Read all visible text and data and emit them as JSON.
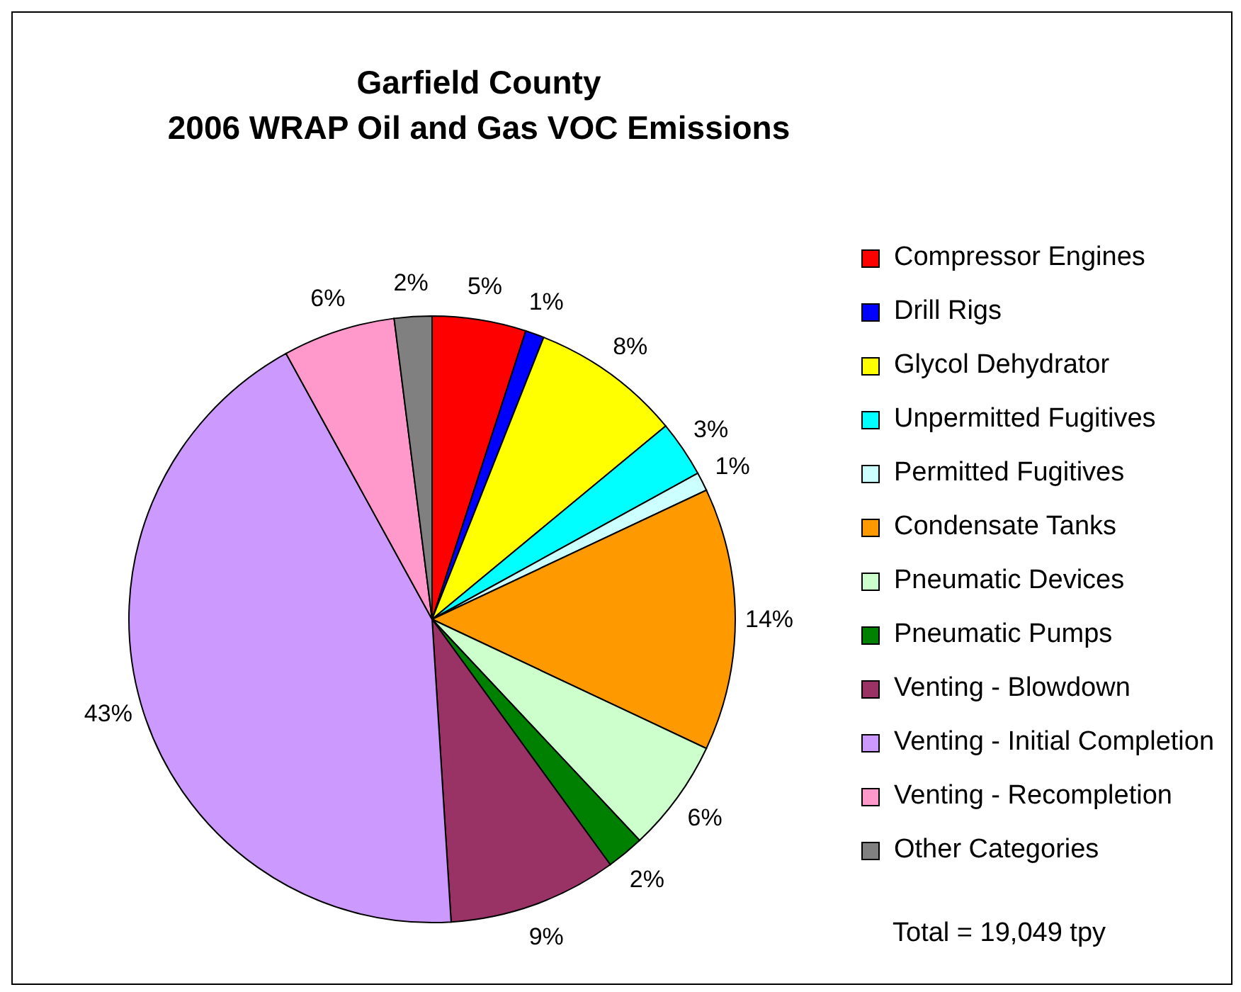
{
  "chart_data": {
    "type": "pie",
    "title": "Garfield County\n2006 WRAP Oil and Gas VOC Emissions",
    "categories": [
      "Compressor Engines",
      "Drill Rigs",
      "Glycol Dehydrator",
      "Unpermitted Fugitives",
      "Permitted Fugitives",
      "Condensate Tanks",
      "Pneumatic Devices",
      "Pneumatic Pumps",
      "Venting - Blowdown",
      "Venting - Initial Completion",
      "Venting - Recompletion",
      "Other Categories"
    ],
    "values": [
      5,
      1,
      8,
      3,
      1,
      14,
      6,
      2,
      9,
      43,
      6,
      2
    ],
    "value_labels": [
      "5%",
      "1%",
      "8%",
      "3%",
      "1%",
      "14%",
      "6%",
      "2%",
      "9%",
      "43%",
      "6%",
      "2%"
    ],
    "colors": [
      "#ff0000",
      "#0000ff",
      "#ffff00",
      "#00ffff",
      "#ccffff",
      "#ff9900",
      "#ccffcc",
      "#008000",
      "#993366",
      "#cc99ff",
      "#ff99cc",
      "#808080"
    ],
    "legend": "right",
    "annotations": [
      "Total = 19,049 tpy"
    ]
  }
}
